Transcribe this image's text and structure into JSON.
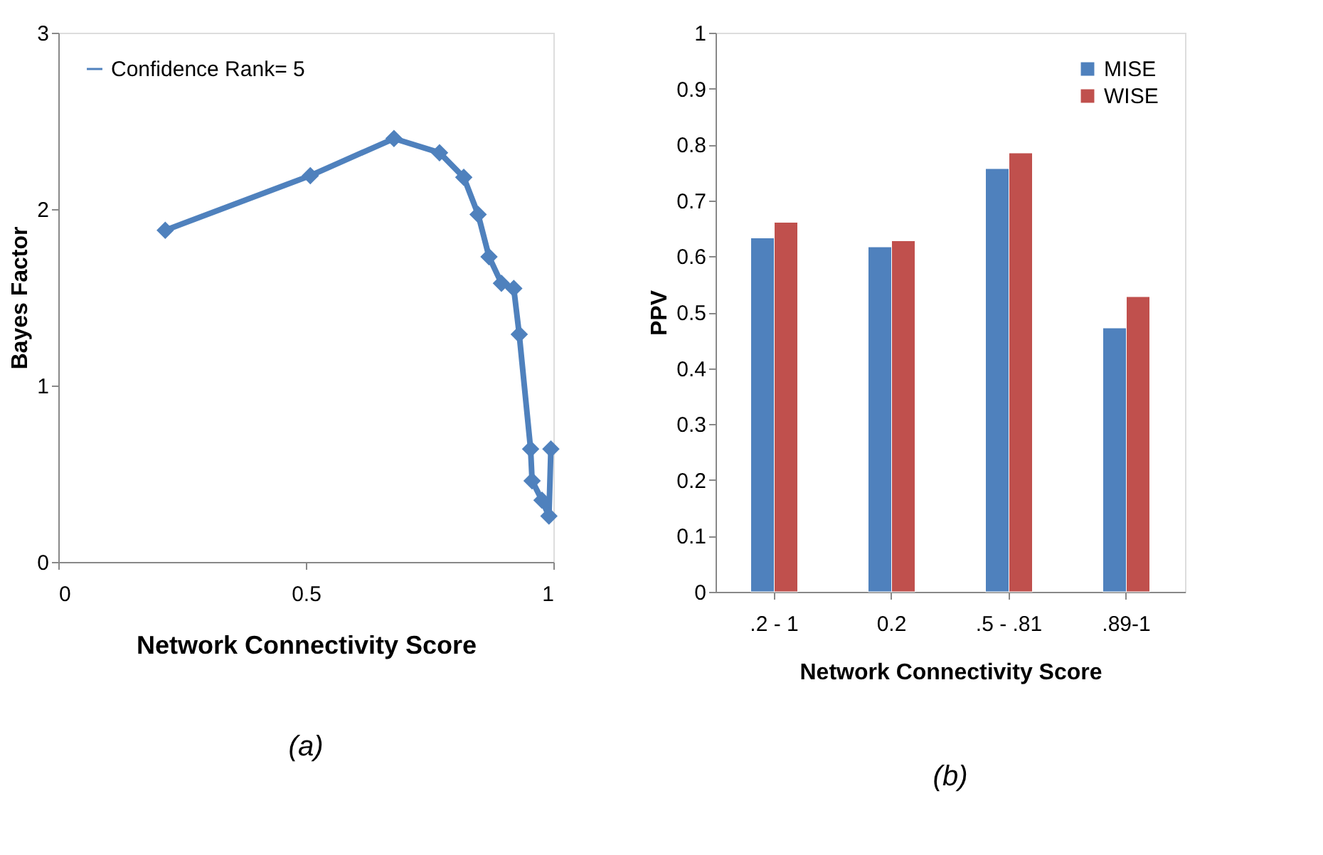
{
  "chart_data": [
    {
      "type": "line",
      "xlabel": "Network Connectivity Score",
      "ylabel": "Bayes Factor",
      "x": [
        0.216,
        0.509,
        0.678,
        0.77,
        0.819,
        0.848,
        0.87,
        0.895,
        0.92,
        0.931,
        0.954,
        0.957,
        0.977,
        0.991,
        0.995
      ],
      "series": [
        {
          "name": "Confidence Rank= 5",
          "color": "#4f81bd",
          "values": [
            1.88,
            2.19,
            2.4,
            2.32,
            2.18,
            1.97,
            1.73,
            1.58,
            1.55,
            1.29,
            0.64,
            0.46,
            0.35,
            0.26,
            0.64
          ]
        }
      ],
      "xlim": [
        0,
        1
      ],
      "xticks": [
        0,
        0.5,
        1
      ],
      "ylim": [
        0,
        3
      ],
      "yticks": [
        0,
        1,
        2,
        3
      ],
      "marker": "diamond",
      "line_style": "solid",
      "grid": false,
      "legend": "top left",
      "annotations": [
        "(a)"
      ]
    },
    {
      "type": "bar",
      "xlabel": "Network Connectivity Score",
      "ylabel": "PPV",
      "categories": [
        ".2 - 1",
        "0.2",
        ".5 - .81",
        ".89-1"
      ],
      "series": [
        {
          "name": "MISE",
          "color": "#4f81bd",
          "values": [
            0.633,
            0.617,
            0.757,
            0.472
          ]
        },
        {
          "name": "WISE",
          "color": "#c0504d",
          "values": [
            0.661,
            0.628,
            0.785,
            0.528
          ]
        }
      ],
      "ylim": [
        0,
        1
      ],
      "yticks": [
        0,
        0.1,
        0.2,
        0.3,
        0.4,
        0.5,
        0.6,
        0.7,
        0.8,
        0.9,
        1
      ],
      "grid": false,
      "legend": "top right",
      "annotations": [
        "(b)"
      ]
    }
  ]
}
